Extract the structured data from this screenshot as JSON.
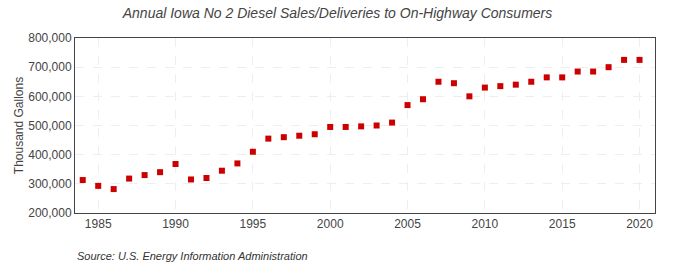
{
  "chart_data": {
    "type": "scatter",
    "title": "Annual Iowa No 2 Diesel Sales/Deliveries to On-Highway Consumers",
    "y_label": "Thousand Gallons",
    "annotations": [
      "Source: U.S. Energy Information Administration"
    ],
    "x": [
      1984,
      1985,
      1986,
      1987,
      1988,
      1989,
      1990,
      1991,
      1992,
      1993,
      1994,
      1995,
      1996,
      1997,
      1998,
      1999,
      2000,
      2001,
      2002,
      2003,
      2004,
      2005,
      2006,
      2007,
      2008,
      2009,
      2010,
      2011,
      2012,
      2013,
      2014,
      2015,
      2016,
      2017,
      2018,
      2019,
      2020
    ],
    "values": [
      313000,
      293000,
      282000,
      318000,
      330000,
      340000,
      368000,
      315000,
      320000,
      345000,
      370000,
      410000,
      455000,
      460000,
      465000,
      470000,
      495000,
      495000,
      497000,
      500000,
      510000,
      570000,
      590000,
      650000,
      645000,
      600000,
      630000,
      635000,
      640000,
      650000,
      665000,
      665000,
      685000,
      685000,
      700000,
      725000,
      725000
    ],
    "color": "#cc0000",
    "marker": "square",
    "xlim": [
      1983.5,
      2021
    ],
    "xticks": [
      1985,
      1990,
      1995,
      2000,
      2005,
      2010,
      2015,
      2020
    ],
    "ylim": [
      200000,
      800000
    ],
    "yticks": [
      {
        "value": 200000,
        "label": "200,000"
      },
      {
        "value": 300000,
        "label": "300,000"
      },
      {
        "value": 400000,
        "label": "400,000"
      },
      {
        "value": 500000,
        "label": "500,000"
      },
      {
        "value": 600000,
        "label": "600,000"
      },
      {
        "value": 700000,
        "label": "700,000"
      },
      {
        "value": 800000,
        "label": "800,000"
      }
    ],
    "grid": true
  }
}
